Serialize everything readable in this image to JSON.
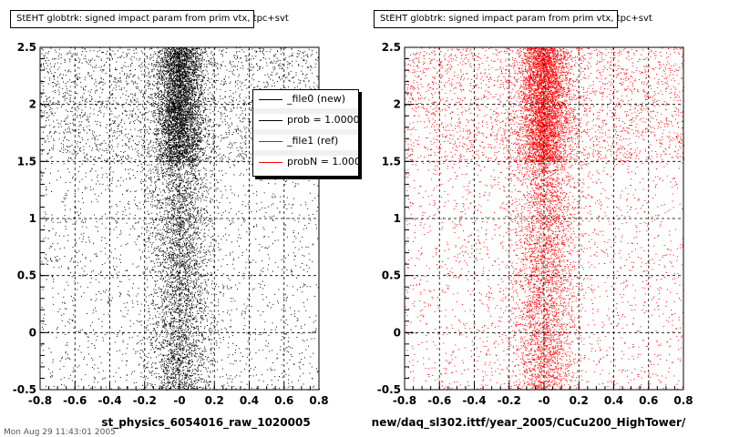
{
  "footer": "Mon Aug 29 11:43:01 2005",
  "chart_data": [
    {
      "type": "scatter",
      "title": "StEHT globtrk: signed impact param from prim vtx, tpc+svt",
      "xlabel": "st_physics_6054016_raw_1020005",
      "ylabel": "",
      "xlim": [
        -0.8,
        0.8
      ],
      "ylim": [
        -0.5,
        2.5
      ],
      "x_ticks": [
        "-0.8",
        "-0.6",
        "-0.4",
        "-0.2",
        "-0",
        "0.2",
        "0.4",
        "0.6",
        "0.8"
      ],
      "y_ticks": [
        "-0.5",
        "0",
        "0.5",
        "1",
        "1.5",
        "2",
        "2.5"
      ],
      "grid": true,
      "marker_color": "#000000",
      "legend": {
        "placement": "top-right",
        "entries": [
          {
            "label": "_file0 (new)",
            "color": "#000000"
          },
          {
            "label": "prob = 1.000000",
            "color": "#000000"
          },
          {
            "label": "_file1 (ref)",
            "color": "#ff0000"
          },
          {
            "label": "probN = 1.000000",
            "color": "#ff0000"
          }
        ]
      },
      "density_profile": {
        "description_y": [
          -0.5,
          1.5,
          2.5
        ],
        "core_center_x": 0.0,
        "core_halfwidth": 0.1,
        "low_band_density": "moderate",
        "high_band_density": "high"
      }
    },
    {
      "type": "scatter",
      "title": "StEHT globtrk: signed impact param from prim vtx, tpc+svt",
      "xlabel": "new/daq_sl302.ittf/year_2005/CuCu200_HighTower/",
      "ylabel": "",
      "xlim": [
        -0.8,
        0.8
      ],
      "ylim": [
        -0.5,
        2.5
      ],
      "x_ticks": [
        "-0.8",
        "-0.6",
        "-0.4",
        "-0.2",
        "-0",
        "0.2",
        "0.4",
        "0.6",
        "0.8"
      ],
      "y_ticks": [
        "-0.5",
        "0",
        "0.5",
        "1",
        "1.5",
        "2",
        "2.5"
      ],
      "grid": true,
      "marker_color": "#ff0000"
    }
  ]
}
